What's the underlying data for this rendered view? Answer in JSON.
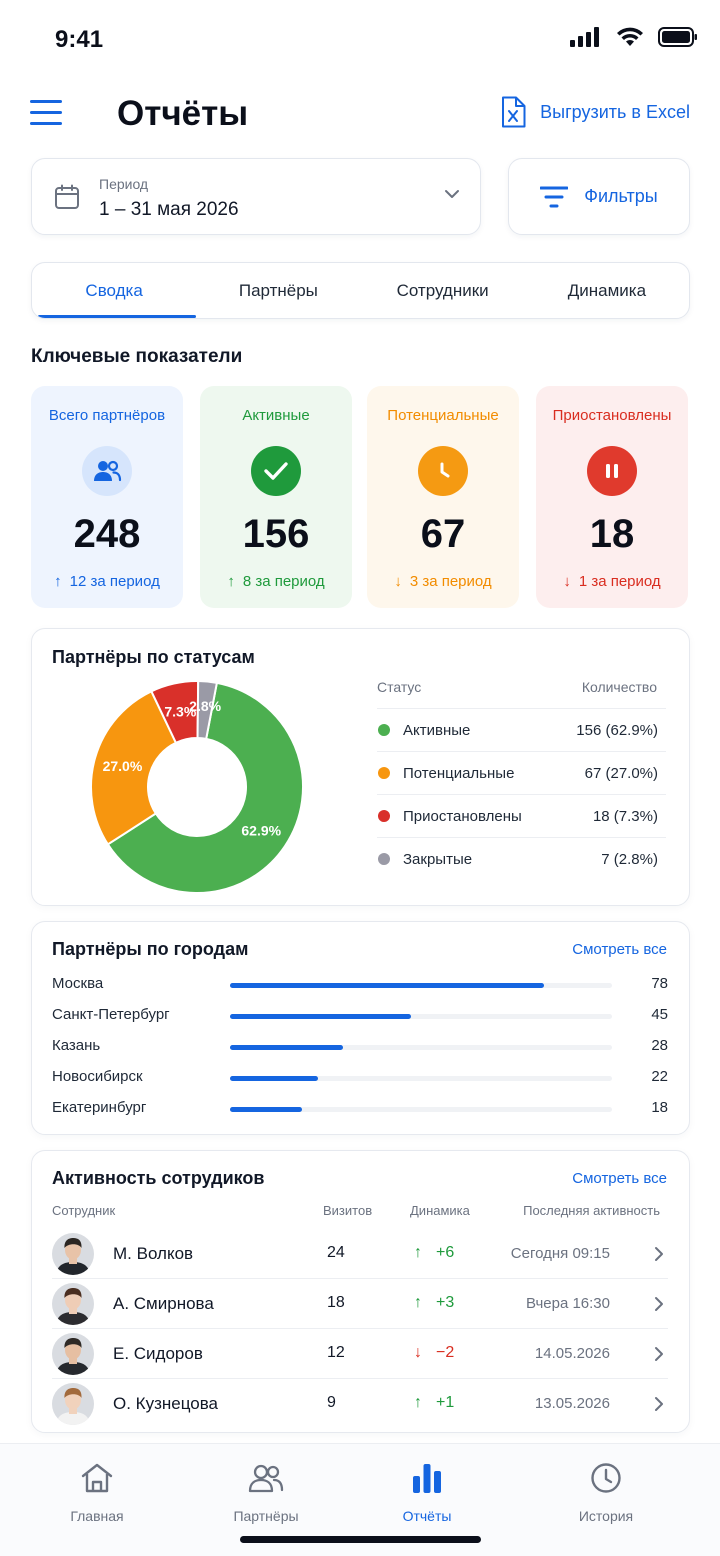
{
  "status_bar": {
    "time": "9:41"
  },
  "header": {
    "title": "Отчёты",
    "export_label": "Выгрузить в Excel"
  },
  "period": {
    "label": "Период",
    "value": "1 – 31 мая 2026"
  },
  "filters": {
    "label": "Фильтры"
  },
  "tabs": [
    {
      "label": "Сводка",
      "active": true
    },
    {
      "label": "Партнёры"
    },
    {
      "label": "Сотрудники"
    },
    {
      "label": "Динамика"
    }
  ],
  "kpi_section_title": "Ключевые показатели",
  "kpis": [
    {
      "title": "Всего партнёров",
      "value": "248",
      "delta": "12 за период",
      "arrow": "↑",
      "color": "#1565e0",
      "bg": "#eef4fe",
      "icon_bg": "#d6e5fc",
      "icon": "people-icon"
    },
    {
      "title": "Активные",
      "value": "156",
      "delta": "8 за период",
      "arrow": "↑",
      "color": "#1f9a3c",
      "bg": "#eef8ef",
      "icon_bg": "#1f9a3c",
      "icon": "check-icon"
    },
    {
      "title": "Потенциальные",
      "value": "67",
      "delta": "3 за период",
      "arrow": "↓",
      "color": "#f28c00",
      "bg": "#fef7ec",
      "icon_bg": "#f59a12",
      "icon": "clock-icon"
    },
    {
      "title": "Приостановлены",
      "value": "18",
      "delta": "1 за период",
      "arrow": "↓",
      "color": "#d92d20",
      "bg": "#fdeeee",
      "icon_bg": "#e03a2d",
      "icon": "pause-icon"
    }
  ],
  "status_card": {
    "title": "Партнёры по статусам",
    "legend_status_header": "Статус",
    "legend_count_header": "Количество"
  },
  "chart_data": {
    "type": "pie",
    "title": "Партнёры по статусам",
    "donut": true,
    "series": [
      {
        "name": "Активные",
        "value": 156,
        "percent": 62.9,
        "label": "156 (62.9%)",
        "slice_label": "62.9%",
        "color": "#4caf50"
      },
      {
        "name": "Потенциальные",
        "value": 67,
        "percent": 27.0,
        "label": "67 (27.0%)",
        "slice_label": "27.0%",
        "color": "#f7960f"
      },
      {
        "name": "Приостановлены",
        "value": 18,
        "percent": 7.3,
        "label": "18 (7.3%)",
        "slice_label": "7.3%",
        "color": "#d9302a"
      },
      {
        "name": "Закрытые",
        "value": 7,
        "percent": 2.8,
        "label": "7 (2.8%)",
        "slice_label": "2.8%",
        "color": "#9a9aa6"
      }
    ]
  },
  "cities_card": {
    "title": "Партнёры по городам",
    "see_all": "Смотреть все",
    "max_value": 95,
    "items": [
      {
        "name": "Москва",
        "value": 78
      },
      {
        "name": "Санкт-Петербург",
        "value": 45
      },
      {
        "name": "Казань",
        "value": 28
      },
      {
        "name": "Новосибирск",
        "value": 22
      },
      {
        "name": "Екатеринбург",
        "value": 18
      }
    ]
  },
  "employees_card": {
    "title": "Активность сотрудиков",
    "see_all": "Смотреть все",
    "headers": {
      "employee": "Сотрудник",
      "visits": "Визитов",
      "dynamics": "Динамика",
      "last": "Последняя активность"
    },
    "rows": [
      {
        "name": "М. Волков",
        "visits": "24",
        "arrow": "↑",
        "delta": "+6",
        "up": true,
        "last": "Сегодня 09:15",
        "skin": "#e8c3a8",
        "hair": "#2b2622",
        "shirt": "#22262c"
      },
      {
        "name": "А. Смирнова",
        "visits": "18",
        "arrow": "↑",
        "delta": "+3",
        "up": true,
        "last": "Вчера 16:30",
        "skin": "#efcdb6",
        "hair": "#4a2e20",
        "shirt": "#2c2c30"
      },
      {
        "name": "Е. Сидоров",
        "visits": "12",
        "arrow": "↓",
        "delta": "−2",
        "up": false,
        "last": "14.05.2026",
        "skin": "#e6bfa2",
        "hair": "#2f2a26",
        "shirt": "#26292e"
      },
      {
        "name": "О. Кузнецова",
        "visits": "9",
        "arrow": "↑",
        "delta": "+1",
        "up": true,
        "last": "13.05.2026",
        "skin": "#f1d2bc",
        "hair": "#a26a3c",
        "shirt": "#f2f2f2"
      }
    ]
  },
  "bottom_nav": [
    {
      "label": "Главная",
      "icon": "home-icon"
    },
    {
      "label": "Партнёры",
      "icon": "people-icon"
    },
    {
      "label": "Отчёты",
      "icon": "bar-chart-icon",
      "active": true
    },
    {
      "label": "История",
      "icon": "clock-icon"
    }
  ],
  "colors": {
    "accent": "#1565e0",
    "up": "#1f9a3c",
    "down": "#d92d20"
  }
}
